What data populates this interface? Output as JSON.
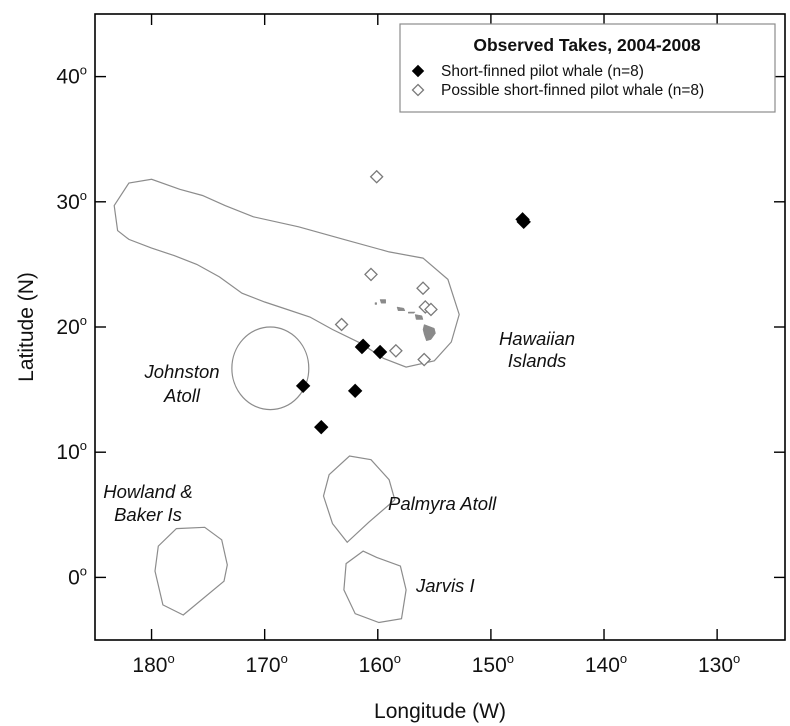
{
  "chart_data": {
    "type": "scatter",
    "xlabel": "Longitude (W)",
    "ylabel": "Latitude (N)",
    "xlim": [
      185,
      124
    ],
    "ylim": [
      -5,
      45
    ],
    "x_reversed": true,
    "x_ticks": [
      {
        "value": 180,
        "label": "180"
      },
      {
        "value": 170,
        "label": "170"
      },
      {
        "value": 160,
        "label": "160"
      },
      {
        "value": 150,
        "label": "150"
      },
      {
        "value": 140,
        "label": "140"
      },
      {
        "value": 130,
        "label": "130"
      }
    ],
    "y_ticks": [
      {
        "value": 40,
        "label": "40"
      },
      {
        "value": 30,
        "label": "30"
      },
      {
        "value": 20,
        "label": "20"
      },
      {
        "value": 10,
        "label": "10"
      },
      {
        "value": 0,
        "label": "0"
      }
    ],
    "tick_suffix": "o",
    "legend": {
      "title": "Observed Takes, 2004-2008",
      "position": "top-right"
    },
    "series": [
      {
        "name": "Short-finned pilot whale (n=8)",
        "marker": "filled-diamond",
        "color": "#000000",
        "points": [
          {
            "x": 147.2,
            "y": 28.6
          },
          {
            "x": 147.1,
            "y": 28.4
          },
          {
            "x": 161.3,
            "y": 18.5
          },
          {
            "x": 159.8,
            "y": 18.0
          },
          {
            "x": 166.6,
            "y": 15.3
          },
          {
            "x": 162.0,
            "y": 14.9
          },
          {
            "x": 165.0,
            "y": 12.0
          },
          {
            "x": 161.4,
            "y": 18.4
          }
        ]
      },
      {
        "name": "Possible short-finned pilot whale (n=8)",
        "marker": "open-diamond",
        "color": "#7a7a7a",
        "points": [
          {
            "x": 160.1,
            "y": 32.0
          },
          {
            "x": 160.6,
            "y": 24.2
          },
          {
            "x": 156.0,
            "y": 23.1
          },
          {
            "x": 155.8,
            "y": 21.6
          },
          {
            "x": 155.3,
            "y": 21.4
          },
          {
            "x": 163.2,
            "y": 20.2
          },
          {
            "x": 158.4,
            "y": 18.1
          },
          {
            "x": 155.9,
            "y": 17.4
          }
        ]
      }
    ],
    "regions": [
      {
        "name": "Hawaiian Islands",
        "label": "Hawaiian Islands",
        "polygon": [
          [
            183.3,
            29.7
          ],
          [
            182.0,
            31.5
          ],
          [
            180.0,
            31.8
          ],
          [
            177.5,
            31.0
          ],
          [
            175.5,
            30.5
          ],
          [
            173.5,
            29.7
          ],
          [
            171.0,
            28.8
          ],
          [
            167.0,
            28.0
          ],
          [
            163.0,
            27.0
          ],
          [
            159.0,
            26.0
          ],
          [
            156.0,
            25.5
          ],
          [
            153.8,
            23.8
          ],
          [
            152.8,
            21.0
          ],
          [
            153.5,
            18.8
          ],
          [
            155.0,
            17.3
          ],
          [
            157.5,
            16.8
          ],
          [
            159.5,
            17.5
          ],
          [
            161.5,
            18.7
          ],
          [
            164.0,
            19.8
          ],
          [
            166.0,
            20.8
          ],
          [
            168.0,
            21.4
          ],
          [
            170.0,
            22.0
          ],
          [
            172.0,
            22.7
          ],
          [
            174.0,
            24.0
          ],
          [
            176.0,
            25.0
          ],
          [
            178.0,
            25.7
          ],
          [
            180.0,
            26.3
          ],
          [
            182.0,
            27.0
          ],
          [
            183.0,
            27.7
          ]
        ]
      },
      {
        "name": "Johnston Atoll",
        "label": "Johnston Atoll",
        "ellipse": {
          "cx": 169.5,
          "cy": 16.7,
          "rx": 3.4,
          "ry": 3.3
        }
      },
      {
        "name": "Palmyra Atoll",
        "label": "Palmyra Atoll",
        "polygon": [
          [
            162.7,
            2.8
          ],
          [
            164.0,
            4.3
          ],
          [
            164.8,
            6.5
          ],
          [
            164.3,
            8.2
          ],
          [
            162.5,
            9.7
          ],
          [
            160.6,
            9.4
          ],
          [
            159.0,
            7.8
          ],
          [
            158.5,
            6.2
          ],
          [
            160.8,
            4.4
          ]
        ]
      },
      {
        "name": "Jarvis I",
        "label": "Jarvis I",
        "polygon": [
          [
            161.3,
            2.1
          ],
          [
            162.8,
            1.1
          ],
          [
            163.0,
            -1.0
          ],
          [
            162.0,
            -2.9
          ],
          [
            159.9,
            -3.6
          ],
          [
            157.9,
            -3.3
          ],
          [
            157.5,
            -1.0
          ],
          [
            158.0,
            0.9
          ],
          [
            160.1,
            1.6
          ]
        ]
      },
      {
        "name": "Howland & Baker Is",
        "label": "Howland & Baker Is",
        "label_lines": [
          "Howland &",
          "Baker Is"
        ],
        "polygon": [
          [
            177.2,
            -3.0
          ],
          [
            179.0,
            -2.2
          ],
          [
            179.7,
            0.5
          ],
          [
            179.4,
            2.5
          ],
          [
            177.8,
            3.9
          ],
          [
            175.3,
            4.0
          ],
          [
            173.8,
            3.0
          ],
          [
            173.3,
            1.0
          ],
          [
            173.6,
            -0.3
          ]
        ]
      }
    ],
    "islands": [
      {
        "name": "Hawaii",
        "polygon": [
          [
            155.9,
            20.2
          ],
          [
            155.0,
            19.9
          ],
          [
            154.9,
            19.5
          ],
          [
            155.3,
            19.0
          ],
          [
            155.7,
            18.9
          ],
          [
            155.9,
            19.4
          ],
          [
            156.0,
            19.8
          ]
        ]
      },
      {
        "name": "Maui",
        "polygon": [
          [
            156.7,
            21.0
          ],
          [
            156.1,
            20.9
          ],
          [
            156.0,
            20.6
          ],
          [
            156.6,
            20.6
          ]
        ]
      },
      {
        "name": "Molokai",
        "polygon": [
          [
            157.3,
            21.2
          ],
          [
            156.7,
            21.2
          ],
          [
            156.8,
            21.1
          ],
          [
            157.3,
            21.1
          ]
        ]
      },
      {
        "name": "Oahu",
        "polygon": [
          [
            158.3,
            21.6
          ],
          [
            157.7,
            21.5
          ],
          [
            157.6,
            21.3
          ],
          [
            158.2,
            21.3
          ]
        ]
      },
      {
        "name": "Kauai",
        "polygon": [
          [
            159.8,
            22.2
          ],
          [
            159.3,
            22.2
          ],
          [
            159.3,
            21.9
          ],
          [
            159.7,
            21.9
          ]
        ]
      },
      {
        "name": "Niihau",
        "polygon": [
          [
            160.25,
            21.95
          ],
          [
            160.1,
            21.95
          ],
          [
            160.1,
            21.8
          ],
          [
            160.25,
            21.8
          ]
        ]
      }
    ]
  }
}
